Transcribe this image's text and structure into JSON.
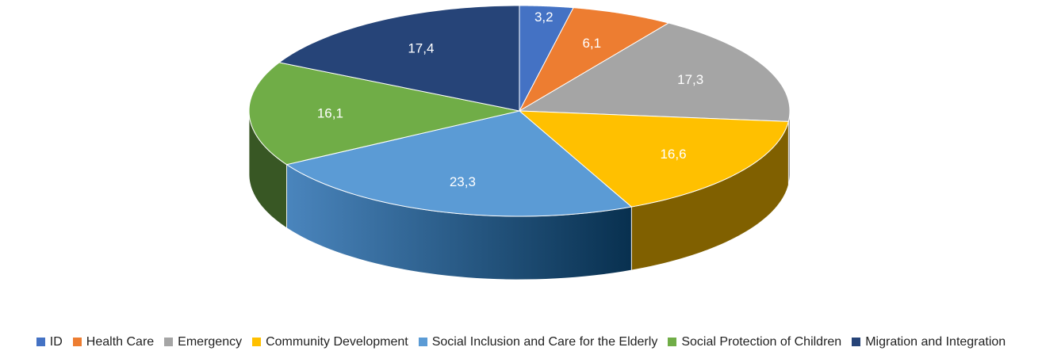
{
  "chart_data": {
    "type": "pie",
    "title": "",
    "categories": [
      "ID",
      "Health Care",
      "Emergency",
      "Community Development",
      "Social Inclusion and Care for the Elderly",
      "Social Protection of Children",
      "Migration and Integration"
    ],
    "values": [
      3.2,
      6.1,
      17.3,
      16.6,
      23.3,
      16.1,
      17.4
    ],
    "labels": [
      "3,2",
      "6,1",
      "17,3",
      "16,6",
      "23,3",
      "16,1",
      "17,4"
    ],
    "colors": [
      "#4472C4",
      "#ED7D31",
      "#A5A5A5",
      "#FFC000",
      "#5B9BD5",
      "#70AD47",
      "#264478"
    ],
    "style": "3d-pie",
    "legend_position": "bottom"
  }
}
